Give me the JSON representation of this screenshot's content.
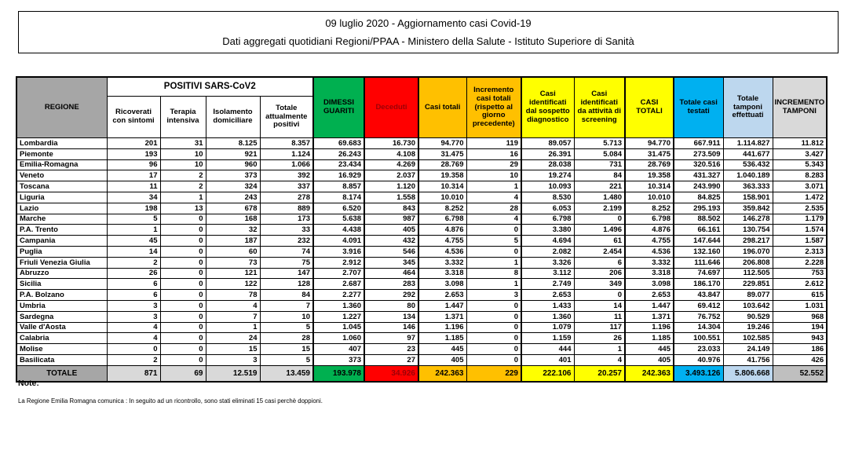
{
  "title": {
    "line1": "09 luglio 2020 - Aggiornamento casi Covid-19",
    "line2": "Dati aggregati quotidiani Regioni/PPAA - Ministero della Salute - Istituto Superiore di Sanità"
  },
  "colors": {
    "green": "#00B050",
    "red": "#FF0000",
    "red_text": "#9C0006",
    "orange": "#FFC000",
    "yellow": "#FFFF00",
    "blue": "#00B0F0",
    "light_blue": "#BDD7EE",
    "gray_header": "#A6A6A6",
    "gray_light": "#D9D9D9"
  },
  "table": {
    "group_header": "POSITIVI SARS-CoV2",
    "columns": [
      {
        "key": "regione",
        "label": "REGIONE"
      },
      {
        "key": "ricoverati_con_sintomi",
        "label": "Ricoverati con sintomi"
      },
      {
        "key": "terapia_intensiva",
        "label": "Terapia intensiva"
      },
      {
        "key": "isolamento_domiciliare",
        "label": "Isolamento domiciliare"
      },
      {
        "key": "totale_attualmente_positivi",
        "label": "Totale attualmente positivi"
      },
      {
        "key": "dimessi_guariti",
        "label": "DIMESSI GUARITI"
      },
      {
        "key": "deceduti",
        "label": "Deceduti"
      },
      {
        "key": "casi_totali",
        "label": "Casi totali"
      },
      {
        "key": "incremento_casi_totali",
        "label": "Incremento casi totali (rispetto al giorno precedente)"
      },
      {
        "key": "casi_sospetto_diagnostico",
        "label": "Casi identificati dal sospetto diagnostico"
      },
      {
        "key": "casi_screening",
        "label": "Casi identificati da attività di screening"
      },
      {
        "key": "casi_totali_2",
        "label": "CASI TOTALI"
      },
      {
        "key": "totale_casi_testati",
        "label": "Totale casi testati"
      },
      {
        "key": "totale_tamponi_effettuati",
        "label": "Totale tamponi effettuati"
      },
      {
        "key": "incremento_tamponi",
        "label": "INCREMENTO TAMPONI"
      }
    ],
    "rows": [
      [
        "Lombardia",
        "201",
        "31",
        "8.125",
        "8.357",
        "69.683",
        "16.730",
        "94.770",
        "119",
        "89.057",
        "5.713",
        "94.770",
        "667.911",
        "1.114.827",
        "11.812"
      ],
      [
        "Piemonte",
        "193",
        "10",
        "921",
        "1.124",
        "26.243",
        "4.108",
        "31.475",
        "16",
        "26.391",
        "5.084",
        "31.475",
        "273.509",
        "441.677",
        "3.427"
      ],
      [
        "Emilia-Romagna",
        "96",
        "10",
        "960",
        "1.066",
        "23.434",
        "4.269",
        "28.769",
        "29",
        "28.038",
        "731",
        "28.769",
        "320.516",
        "536.432",
        "5.343"
      ],
      [
        "Veneto",
        "17",
        "2",
        "373",
        "392",
        "16.929",
        "2.037",
        "19.358",
        "10",
        "19.274",
        "84",
        "19.358",
        "431.327",
        "1.040.189",
        "8.283"
      ],
      [
        "Toscana",
        "11",
        "2",
        "324",
        "337",
        "8.857",
        "1.120",
        "10.314",
        "1",
        "10.093",
        "221",
        "10.314",
        "243.990",
        "363.333",
        "3.071"
      ],
      [
        "Liguria",
        "34",
        "1",
        "243",
        "278",
        "8.174",
        "1.558",
        "10.010",
        "4",
        "8.530",
        "1.480",
        "10.010",
        "84.825",
        "158.901",
        "1.472"
      ],
      [
        "Lazio",
        "198",
        "13",
        "678",
        "889",
        "6.520",
        "843",
        "8.252",
        "28",
        "6.053",
        "2.199",
        "8.252",
        "295.193",
        "359.842",
        "2.535"
      ],
      [
        "Marche",
        "5",
        "0",
        "168",
        "173",
        "5.638",
        "987",
        "6.798",
        "4",
        "6.798",
        "0",
        "6.798",
        "88.502",
        "146.278",
        "1.179"
      ],
      [
        "P.A. Trento",
        "1",
        "0",
        "32",
        "33",
        "4.438",
        "405",
        "4.876",
        "0",
        "3.380",
        "1.496",
        "4.876",
        "66.161",
        "130.754",
        "1.574"
      ],
      [
        "Campania",
        "45",
        "0",
        "187",
        "232",
        "4.091",
        "432",
        "4.755",
        "5",
        "4.694",
        "61",
        "4.755",
        "147.644",
        "298.217",
        "1.587"
      ],
      [
        "Puglia",
        "14",
        "0",
        "60",
        "74",
        "3.916",
        "546",
        "4.536",
        "0",
        "2.082",
        "2.454",
        "4.536",
        "132.160",
        "196.070",
        "2.313"
      ],
      [
        "Friuli Venezia Giulia",
        "2",
        "0",
        "73",
        "75",
        "2.912",
        "345",
        "3.332",
        "1",
        "3.326",
        "6",
        "3.332",
        "111.646",
        "206.808",
        "2.228"
      ],
      [
        "Abruzzo",
        "26",
        "0",
        "121",
        "147",
        "2.707",
        "464",
        "3.318",
        "8",
        "3.112",
        "206",
        "3.318",
        "74.697",
        "112.505",
        "753"
      ],
      [
        "Sicilia",
        "6",
        "0",
        "122",
        "128",
        "2.687",
        "283",
        "3.098",
        "1",
        "2.749",
        "349",
        "3.098",
        "186.170",
        "229.851",
        "2.612"
      ],
      [
        "P.A. Bolzano",
        "6",
        "0",
        "78",
        "84",
        "2.277",
        "292",
        "2.653",
        "3",
        "2.653",
        "0",
        "2.653",
        "43.847",
        "89.077",
        "615"
      ],
      [
        "Umbria",
        "3",
        "0",
        "4",
        "7",
        "1.360",
        "80",
        "1.447",
        "0",
        "1.433",
        "14",
        "1.447",
        "69.412",
        "103.642",
        "1.031"
      ],
      [
        "Sardegna",
        "3",
        "0",
        "7",
        "10",
        "1.227",
        "134",
        "1.371",
        "0",
        "1.360",
        "11",
        "1.371",
        "76.752",
        "90.529",
        "968"
      ],
      [
        "Valle d'Aosta",
        "4",
        "0",
        "1",
        "5",
        "1.045",
        "146",
        "1.196",
        "0",
        "1.079",
        "117",
        "1.196",
        "14.304",
        "19.246",
        "194"
      ],
      [
        "Calabria",
        "4",
        "0",
        "24",
        "28",
        "1.060",
        "97",
        "1.185",
        "0",
        "1.159",
        "26",
        "1.185",
        "100.551",
        "102.585",
        "943"
      ],
      [
        "Molise",
        "0",
        "0",
        "15",
        "15",
        "407",
        "23",
        "445",
        "0",
        "444",
        "1",
        "445",
        "23.033",
        "24.149",
        "186"
      ],
      [
        "Basilicata",
        "2",
        "0",
        "3",
        "5",
        "373",
        "27",
        "405",
        "0",
        "401",
        "4",
        "405",
        "40.976",
        "41.756",
        "426"
      ]
    ],
    "total_row": [
      "TOTALE",
      "871",
      "69",
      "12.519",
      "13.459",
      "193.978",
      "34.926",
      "242.363",
      "229",
      "222.106",
      "20.257",
      "242.363",
      "3.493.126",
      "5.806.668",
      "52.552"
    ]
  },
  "notes": {
    "heading": "Note:",
    "body": "La Regione Emilia Romagna comunica : In seguito ad un ricontrollo, sono stati eliminati 15 casi perchè  doppioni."
  }
}
